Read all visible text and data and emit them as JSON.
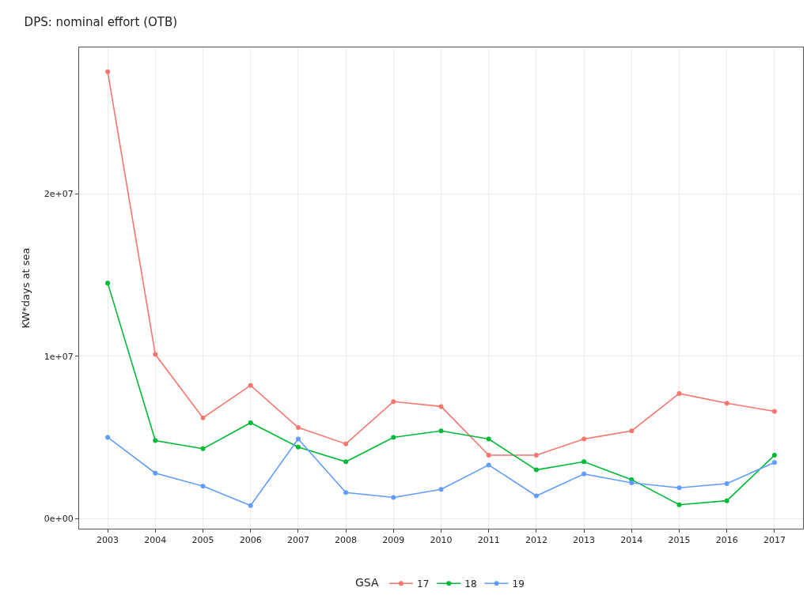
{
  "chart_data": {
    "type": "line",
    "title": "DPS: nominal effort (OTB)",
    "ylabel": "KW*days at sea",
    "legend_title": "GSA",
    "categories": [
      "2003",
      "2004",
      "2005",
      "2006",
      "2007",
      "2008",
      "2009",
      "2010",
      "2011",
      "2012",
      "2013",
      "2014",
      "2015",
      "2016",
      "2017"
    ],
    "series": [
      {
        "name": "17",
        "color": "#f8766d",
        "values": [
          27500000,
          10100000,
          6200000,
          8200000,
          5600000,
          4600000,
          7200000,
          6900000,
          3900000,
          3900000,
          4900000,
          5400000,
          7700000,
          7100000,
          6600000
        ]
      },
      {
        "name": "18",
        "color": "#00ba38",
        "values": [
          14500000,
          4800000,
          4300000,
          5900000,
          4400000,
          3500000,
          5000000,
          5400000,
          4900000,
          3000000,
          3500000,
          2400000,
          850000,
          1100000,
          3900000
        ]
      },
      {
        "name": "19",
        "color": "#619cff",
        "values": [
          5000000,
          2800000,
          2000000,
          800000,
          4900000,
          1600000,
          1300000,
          1800000,
          3300000,
          1400000,
          2750000,
          2200000,
          1900000,
          2150000,
          3450000
        ]
      }
    ],
    "ylim": [
      -620000,
      29000000
    ],
    "yticks": [
      {
        "value": 0,
        "label": "0e+00"
      },
      {
        "value": 10000000,
        "label": "1e+07"
      },
      {
        "value": 20000000,
        "label": "2e+07"
      }
    ],
    "grid": true,
    "legend": "bottom",
    "marker": "circle",
    "line_style": "solid"
  }
}
